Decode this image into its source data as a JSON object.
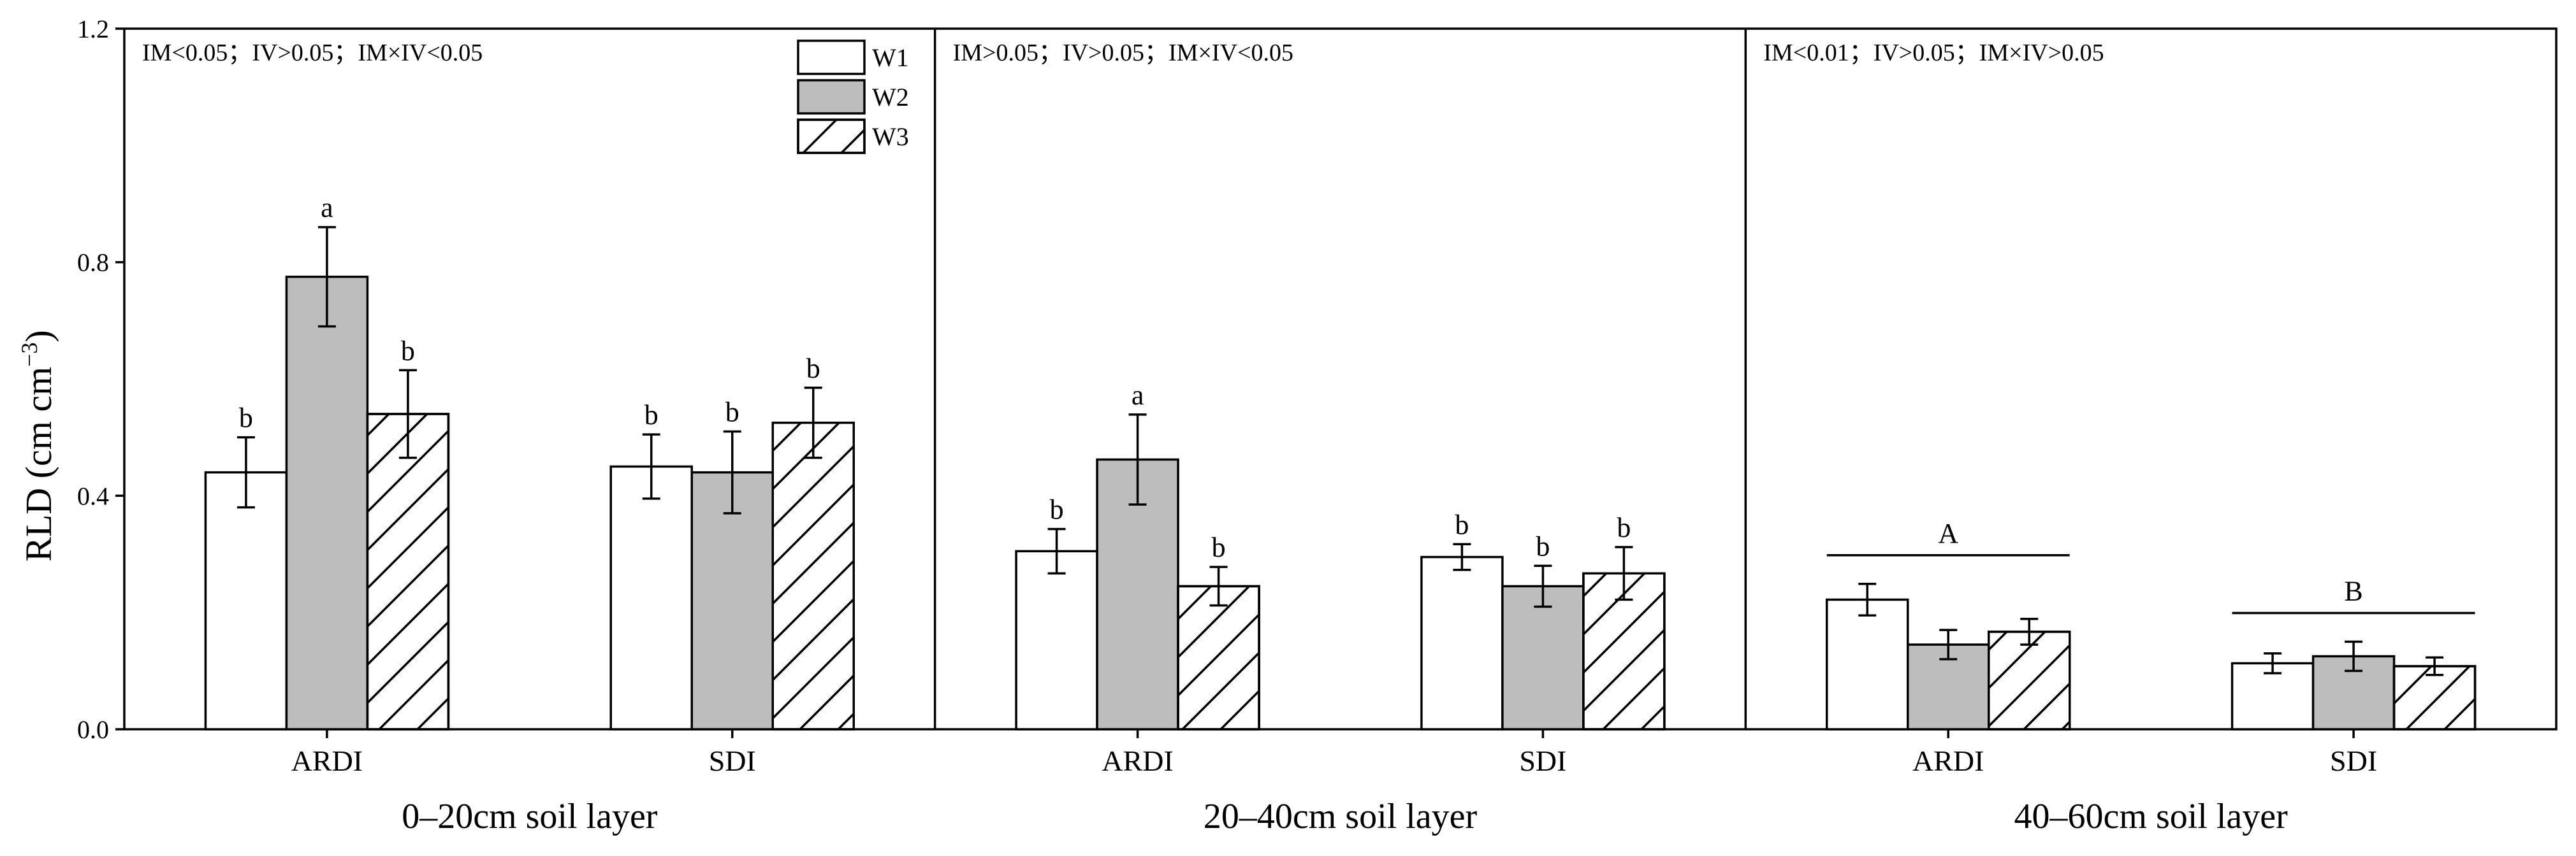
{
  "chart_data": {
    "type": "bar",
    "ylabel_main": "RLD (cm cm",
    "ylabel_sup": "−3",
    "ylabel_close": ")",
    "ylim": [
      0,
      1.2
    ],
    "yticks": [
      "0.0",
      "0.4",
      "0.8",
      "1.2"
    ],
    "ytick_values": [
      0,
      0.4,
      0.8,
      1.2
    ],
    "legend": [
      {
        "name": "W1",
        "fill": "#ffffff",
        "hatch": false
      },
      {
        "name": "W2",
        "fill": "#bdbdbd",
        "hatch": false
      },
      {
        "name": "W3",
        "fill": "#ffffff",
        "hatch": true
      }
    ],
    "panels": [
      {
        "group_label": "0–20cm soil layer",
        "stats": "IM<0.05；IV>0.05；IM×IV<0.05",
        "categories": [
          {
            "label": "ARDI",
            "values": [
              0.44,
              0.775,
              0.54
            ],
            "errors": [
              0.06,
              0.085,
              0.075
            ],
            "letters": [
              "b",
              "a",
              "b"
            ]
          },
          {
            "label": "SDI",
            "values": [
              0.45,
              0.44,
              0.525
            ],
            "errors": [
              0.055,
              0.07,
              0.06
            ],
            "letters": [
              "b",
              "b",
              "b"
            ]
          }
        ]
      },
      {
        "group_label": "20–40cm soil layer",
        "stats": "IM>0.05；IV>0.05；IM×IV<0.05",
        "categories": [
          {
            "label": "ARDI",
            "values": [
              0.305,
              0.462,
              0.245
            ],
            "errors": [
              0.038,
              0.077,
              0.033
            ],
            "letters": [
              "b",
              "a",
              "b"
            ]
          },
          {
            "label": "SDI",
            "values": [
              0.295,
              0.245,
              0.267
            ],
            "errors": [
              0.022,
              0.035,
              0.045
            ],
            "letters": [
              "b",
              "b",
              "b"
            ]
          }
        ]
      },
      {
        "group_label": "40–60cm soil layer",
        "stats": "IM<0.01；IV>0.05；IM×IV>0.05",
        "categories": [
          {
            "label": "ARDI",
            "values": [
              0.222,
              0.145,
              0.167
            ],
            "errors": [
              0.027,
              0.025,
              0.022
            ],
            "letters": [
              "",
              "",
              ""
            ],
            "group_letter": "A"
          },
          {
            "label": "SDI",
            "values": [
              0.113,
              0.125,
              0.108
            ],
            "errors": [
              0.017,
              0.025,
              0.015
            ],
            "letters": [
              "",
              "",
              ""
            ],
            "group_letter": "B"
          }
        ]
      }
    ]
  }
}
